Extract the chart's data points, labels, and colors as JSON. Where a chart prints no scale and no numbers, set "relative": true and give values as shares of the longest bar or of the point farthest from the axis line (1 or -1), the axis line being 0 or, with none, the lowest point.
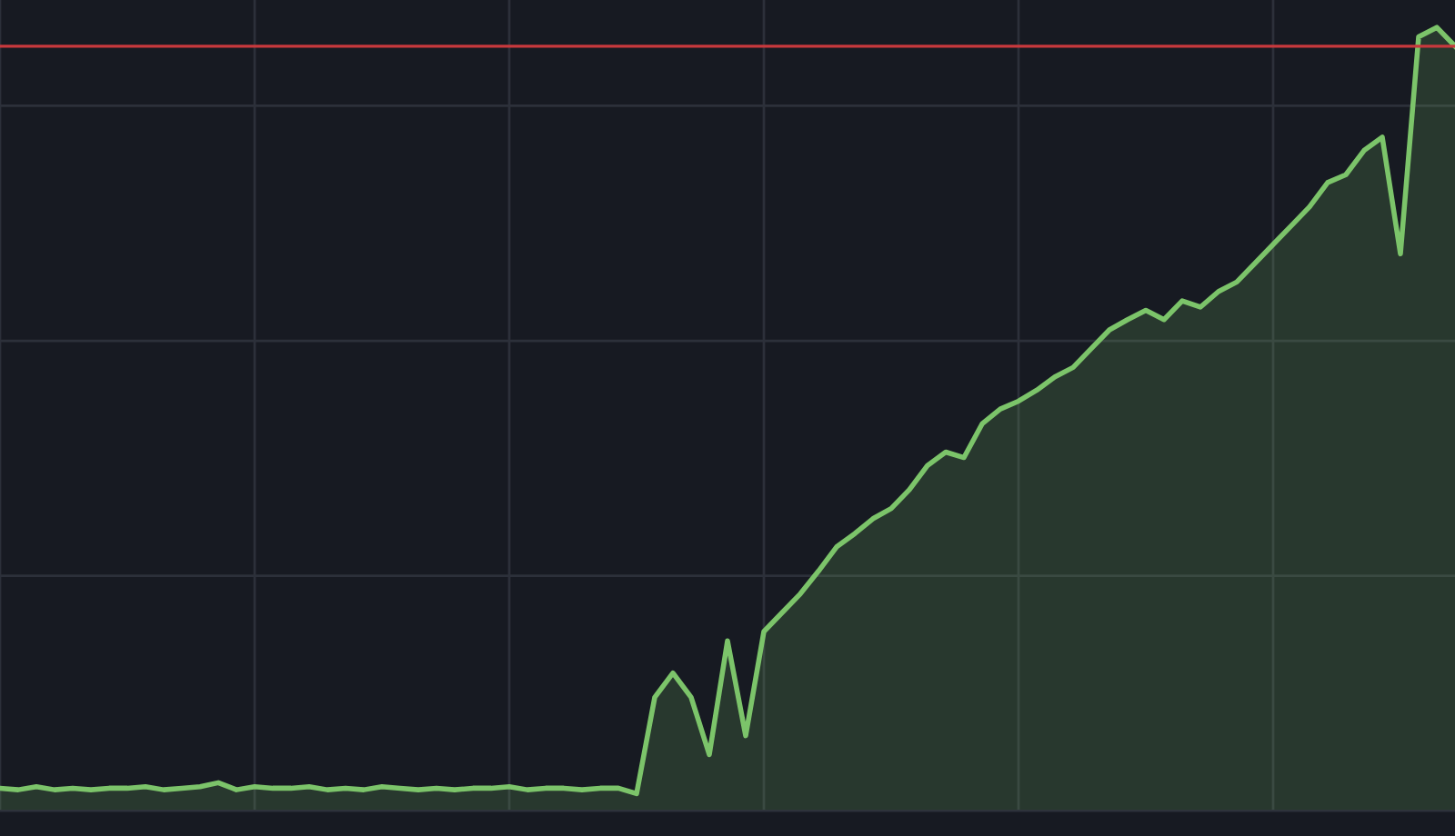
{
  "chart_data": {
    "type": "area",
    "relative": true,
    "grid": true,
    "color": "#7cc46a",
    "categories": [
      null,
      null,
      null,
      null,
      null,
      null,
      null,
      null,
      null,
      null,
      null,
      null,
      null,
      null,
      null,
      null,
      null,
      null,
      null,
      null,
      null,
      null,
      null,
      null,
      null,
      null,
      null,
      null,
      null,
      null,
      null,
      null,
      null,
      null,
      null,
      null,
      null,
      null,
      null,
      null,
      null,
      null,
      null,
      null,
      null,
      null,
      null,
      null,
      null,
      null,
      null,
      null,
      null,
      null,
      null,
      null,
      null,
      null,
      null,
      null,
      null,
      null,
      null,
      null,
      null,
      null,
      null,
      null,
      null,
      null,
      null,
      null,
      null,
      null,
      null,
      null,
      null,
      null,
      null,
      null,
      null
    ],
    "values": [
      0.029,
      0.027,
      0.031,
      0.027,
      0.029,
      0.027,
      0.029,
      0.029,
      0.031,
      0.027,
      0.029,
      0.031,
      0.036,
      0.027,
      0.031,
      0.029,
      0.029,
      0.031,
      0.027,
      0.029,
      0.027,
      0.031,
      0.029,
      0.027,
      0.029,
      0.027,
      0.029,
      0.029,
      0.031,
      0.027,
      0.029,
      0.029,
      0.027,
      0.029,
      0.029,
      0.022,
      0.145,
      0.176,
      0.145,
      0.072,
      0.217,
      0.096,
      0.229,
      0.253,
      0.277,
      0.306,
      0.337,
      0.354,
      0.373,
      0.386,
      0.41,
      0.441,
      0.458,
      0.451,
      0.494,
      0.513,
      0.523,
      0.537,
      0.554,
      0.566,
      0.59,
      0.614,
      0.627,
      0.639,
      0.627,
      0.651,
      0.643,
      0.663,
      0.675,
      0.699,
      0.723,
      0.747,
      0.771,
      0.802,
      0.812,
      0.843,
      0.86,
      0.711,
      0.988,
      1,
      0.976
    ],
    "ref_lines": [
      {
        "axis": "y",
        "value": 0.976,
        "color": "#c8393d"
      }
    ]
  }
}
